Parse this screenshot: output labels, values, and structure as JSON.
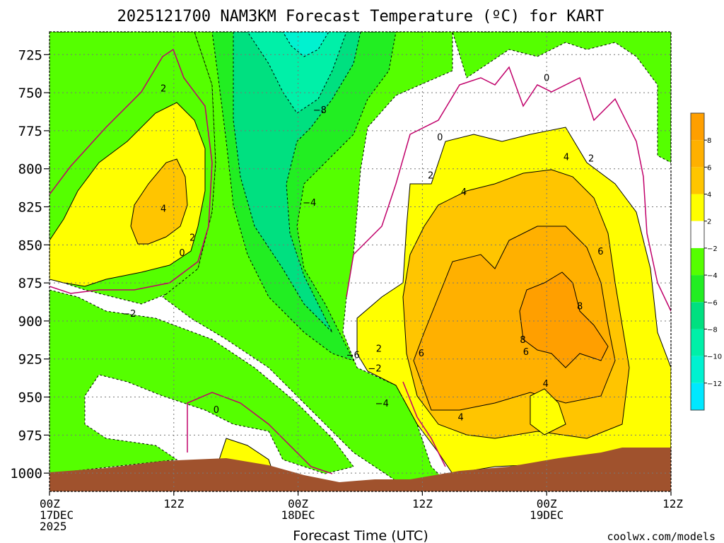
{
  "chart_data": {
    "type": "heatmap",
    "title": "2025121700 NAM3KM Forecast Temperature (ºC) for KART",
    "xlabel": "Forecast Time (UTC)",
    "ylabel": "",
    "y_ticks": [
      725,
      750,
      775,
      800,
      825,
      850,
      875,
      900,
      925,
      950,
      975,
      1000
    ],
    "ylim": [
      1012,
      710
    ],
    "xlim_hours": [
      0,
      60
    ],
    "x_ticks": [
      {
        "hour": 0,
        "line1": "00Z",
        "line2": "17DEC",
        "line3": "2025"
      },
      {
        "hour": 12,
        "line1": "12Z",
        "line2": "",
        "line3": ""
      },
      {
        "hour": 24,
        "line1": "00Z",
        "line2": "18DEC",
        "line3": ""
      },
      {
        "hour": 36,
        "line1": "12Z",
        "line2": "",
        "line3": ""
      },
      {
        "hour": 48,
        "line1": "00Z",
        "line2": "19DEC",
        "line3": ""
      },
      {
        "hour": 60,
        "line1": "12Z",
        "line2": "",
        "line3": ""
      }
    ],
    "grid": true,
    "colorbar": {
      "position": "right",
      "ticks": [
        "8",
        "6",
        "4",
        "2",
        "−2",
        "−4",
        "−6",
        "−8",
        "−10",
        "−12"
      ],
      "bins": [
        {
          "label": "8 to 10",
          "color": "#ff9f00"
        },
        {
          "label": "6 to 8",
          "color": "#ffb000"
        },
        {
          "label": "4 to 6",
          "color": "#ffc500"
        },
        {
          "label": "2 to 4",
          "color": "#ffff00"
        },
        {
          "label": "-2 to 2",
          "color": "#ffffff"
        },
        {
          "label": "-4 to -2",
          "color": "#55ff00"
        },
        {
          "label": "-6 to -4",
          "color": "#22ee22"
        },
        {
          "label": "-8 to -6",
          "color": "#00e080"
        },
        {
          "label": "-10 to -8",
          "color": "#00f0a8"
        },
        {
          "label": "-12 to -10",
          "color": "#00f2d0"
        },
        {
          "label": "-14 to -12",
          "color": "#00e8ff"
        }
      ]
    },
    "ground_color": "#a0522d",
    "contour_labels": [
      {
        "text": "2",
        "hour": 11.0,
        "p": 747
      },
      {
        "text": "4",
        "hour": 11.0,
        "p": 826
      },
      {
        "text": "2",
        "hour": 13.8,
        "p": 845
      },
      {
        "text": "0",
        "hour": 12.8,
        "p": 855
      },
      {
        "text": "−2",
        "hour": 7.7,
        "p": 895
      },
      {
        "text": "0",
        "hour": 16.1,
        "p": 958
      },
      {
        "text": "−8",
        "hour": 26.1,
        "p": 761
      },
      {
        "text": "−4",
        "hour": 25.1,
        "p": 822
      },
      {
        "text": "−6",
        "hour": 29.3,
        "p": 922
      },
      {
        "text": "−2",
        "hour": 31.4,
        "p": 931
      },
      {
        "text": "2",
        "hour": 31.8,
        "p": 918
      },
      {
        "text": "−4",
        "hour": 32.1,
        "p": 954
      },
      {
        "text": "0",
        "hour": 37.7,
        "p": 779
      },
      {
        "text": "2",
        "hour": 36.8,
        "p": 804
      },
      {
        "text": "4",
        "hour": 40.0,
        "p": 815
      },
      {
        "text": "0",
        "hour": 48.0,
        "p": 740
      },
      {
        "text": "4",
        "hour": 49.9,
        "p": 792
      },
      {
        "text": "2",
        "hour": 52.3,
        "p": 793
      },
      {
        "text": "6",
        "hour": 35.9,
        "p": 921
      },
      {
        "text": "6",
        "hour": 53.2,
        "p": 854
      },
      {
        "text": "8",
        "hour": 51.2,
        "p": 890
      },
      {
        "text": "8",
        "hour": 45.7,
        "p": 912
      },
      {
        "text": "6",
        "hour": 46.0,
        "p": 920
      },
      {
        "text": "4",
        "hour": 47.9,
        "p": 941
      },
      {
        "text": "4",
        "hour": 39.7,
        "p": 963
      }
    ]
  },
  "footer": {
    "credit": "coolwx.com/models"
  },
  "colors": {
    "zero_line": "#c0006a",
    "contour": "#000000",
    "credit": "#e03030"
  }
}
